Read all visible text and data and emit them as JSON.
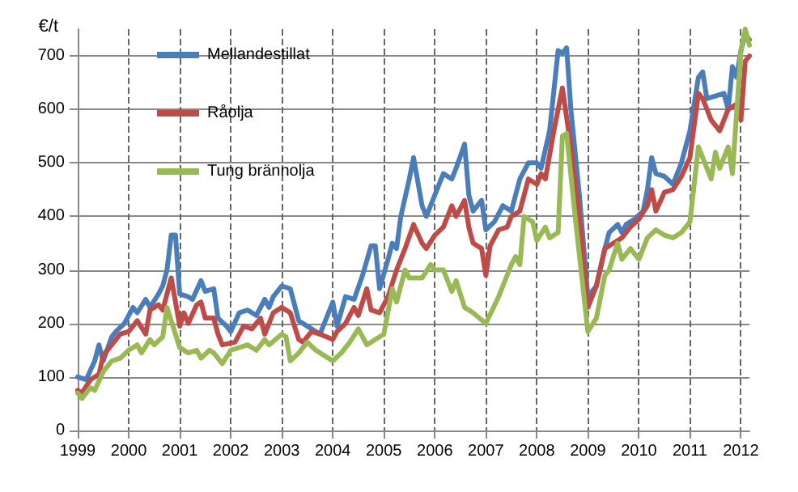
{
  "chart_data": {
    "type": "line",
    "ylabel": "€/t",
    "ylim": [
      0,
      750
    ],
    "yticks": [
      0,
      100,
      200,
      300,
      400,
      500,
      600,
      700
    ],
    "xlim": [
      "1999-01",
      "2012-03"
    ],
    "xticks": [
      "1999",
      "2000",
      "2001",
      "2002",
      "2003",
      "2004",
      "2005",
      "2006",
      "2007",
      "2008",
      "2009",
      "2010",
      "2011",
      "2012"
    ],
    "grid": true,
    "legend": "top left",
    "marker": "none",
    "line_style": "solid",
    "series": [
      {
        "name": "Mellandestillat",
        "color": "#4a7ebb",
        "x": [
          "1999-01",
          "1999-03",
          "1999-05",
          "1999-06",
          "1999-07",
          "1999-09",
          "1999-10",
          "1999-12",
          "2000-02",
          "2000-03",
          "2000-05",
          "2000-06",
          "2000-08",
          "2000-09",
          "2000-10",
          "2000-11",
          "2000-12",
          "2001-01",
          "2001-03",
          "2001-04",
          "2001-06",
          "2001-07",
          "2001-09",
          "2001-10",
          "2001-12",
          "2002-01",
          "2002-03",
          "2002-05",
          "2002-07",
          "2002-09",
          "2002-10",
          "2002-11",
          "2003-01",
          "2003-03",
          "2003-05",
          "2003-08",
          "2003-10",
          "2003-11",
          "2004-01",
          "2004-02",
          "2004-04",
          "2004-06",
          "2004-08",
          "2004-10",
          "2004-11",
          "2004-12",
          "2005-02",
          "2005-03",
          "2005-04",
          "2005-05",
          "2005-07",
          "2005-08",
          "2005-10",
          "2005-11",
          "2006-01",
          "2006-03",
          "2006-05",
          "2006-06",
          "2006-08",
          "2006-09",
          "2006-10",
          "2006-12",
          "2007-01",
          "2007-03",
          "2007-05",
          "2007-07",
          "2007-09",
          "2007-11",
          "2008-01",
          "2008-02",
          "2008-04",
          "2008-06",
          "2008-07",
          "2008-08",
          "2008-09",
          "2008-11",
          "2009-01",
          "2009-03",
          "2009-05",
          "2009-06",
          "2009-08",
          "2009-09",
          "2009-10",
          "2009-12",
          "2010-02",
          "2010-03",
          "2010-04",
          "2010-05",
          "2010-07",
          "2010-09",
          "2010-11",
          "2011-01",
          "2011-03",
          "2011-04",
          "2011-05",
          "2011-07",
          "2011-09",
          "2011-10",
          "2011-11",
          "2011-12",
          "2012-01",
          "2012-02",
          "2012-03"
        ],
        "values": [
          100,
          95,
          130,
          160,
          130,
          175,
          185,
          200,
          230,
          220,
          245,
          230,
          255,
          270,
          300,
          365,
          365,
          255,
          250,
          245,
          280,
          260,
          265,
          210,
          195,
          185,
          220,
          225,
          215,
          245,
          230,
          250,
          270,
          265,
          205,
          190,
          180,
          200,
          240,
          195,
          250,
          245,
          290,
          345,
          345,
          265,
          320,
          350,
          340,
          400,
          470,
          510,
          420,
          400,
          440,
          480,
          470,
          490,
          535,
          440,
          410,
          430,
          375,
          390,
          420,
          410,
          470,
          500,
          500,
          490,
          560,
          710,
          705,
          715,
          600,
          440,
          250,
          270,
          340,
          370,
          385,
          370,
          385,
          395,
          410,
          450,
          510,
          480,
          475,
          460,
          500,
          560,
          660,
          670,
          620,
          625,
          630,
          600,
          680,
          660,
          710,
          740,
          730
        ]
      },
      {
        "name": "Råolja",
        "color": "#be4b48",
        "x": [
          "1999-01",
          "1999-02",
          "1999-04",
          "1999-06",
          "1999-07",
          "1999-09",
          "1999-11",
          "2000-01",
          "2000-03",
          "2000-05",
          "2000-06",
          "2000-08",
          "2000-09",
          "2000-10",
          "2000-11",
          "2001-01",
          "2001-02",
          "2001-03",
          "2001-05",
          "2001-06",
          "2001-07",
          "2001-09",
          "2001-10",
          "2001-11",
          "2002-02",
          "2002-04",
          "2002-06",
          "2002-08",
          "2002-09",
          "2002-11",
          "2003-01",
          "2003-03",
          "2003-05",
          "2003-06",
          "2003-08",
          "2003-10",
          "2004-01",
          "2004-02",
          "2004-04",
          "2004-06",
          "2004-07",
          "2004-09",
          "2004-10",
          "2004-12",
          "2005-02",
          "2005-04",
          "2005-06",
          "2005-08",
          "2005-10",
          "2005-11",
          "2006-01",
          "2006-03",
          "2006-05",
          "2006-06",
          "2006-08",
          "2006-09",
          "2006-10",
          "2006-12",
          "2007-01",
          "2007-02",
          "2007-04",
          "2007-06",
          "2007-07",
          "2007-09",
          "2007-11",
          "2008-01",
          "2008-02",
          "2008-03",
          "2008-05",
          "2008-07",
          "2008-09",
          "2008-11",
          "2009-01",
          "2009-03",
          "2009-05",
          "2009-07",
          "2009-09",
          "2009-11",
          "2010-01",
          "2010-03",
          "2010-04",
          "2010-05",
          "2010-07",
          "2010-09",
          "2010-11",
          "2011-01",
          "2011-03",
          "2011-04",
          "2011-06",
          "2011-08",
          "2011-10",
          "2011-12",
          "2012-01",
          "2012-02",
          "2012-03"
        ],
        "values": [
          75,
          70,
          95,
          105,
          140,
          160,
          180,
          185,
          205,
          180,
          225,
          235,
          225,
          255,
          285,
          195,
          220,
          200,
          235,
          240,
          210,
          210,
          180,
          160,
          165,
          195,
          190,
          210,
          180,
          220,
          230,
          220,
          170,
          165,
          185,
          180,
          170,
          185,
          200,
          230,
          215,
          265,
          225,
          220,
          250,
          300,
          340,
          385,
          350,
          340,
          365,
          380,
          420,
          400,
          430,
          380,
          350,
          340,
          290,
          345,
          375,
          380,
          400,
          410,
          470,
          460,
          480,
          470,
          560,
          640,
          530,
          400,
          230,
          270,
          340,
          350,
          360,
          380,
          395,
          420,
          450,
          410,
          445,
          450,
          475,
          510,
          630,
          620,
          580,
          560,
          600,
          610,
          580,
          690,
          700
        ]
      },
      {
        "name": "Tung brännolja",
        "color": "#98b954",
        "x": [
          "1999-01",
          "1999-02",
          "1999-04",
          "1999-05",
          "1999-07",
          "1999-09",
          "1999-11",
          "2000-01",
          "2000-03",
          "2000-04",
          "2000-06",
          "2000-07",
          "2000-09",
          "2000-10",
          "2000-11",
          "2001-01",
          "2001-03",
          "2001-05",
          "2001-06",
          "2001-08",
          "2001-09",
          "2001-11",
          "2002-01",
          "2002-03",
          "2002-05",
          "2002-07",
          "2002-09",
          "2002-10",
          "2003-01",
          "2003-02",
          "2003-03",
          "2003-05",
          "2003-07",
          "2003-09",
          "2003-11",
          "2004-01",
          "2004-03",
          "2004-05",
          "2004-07",
          "2004-09",
          "2004-11",
          "2005-01",
          "2005-03",
          "2005-04",
          "2005-06",
          "2005-07",
          "2005-10",
          "2005-12",
          "2006-01",
          "2006-03",
          "2006-05",
          "2006-06",
          "2006-08",
          "2006-10",
          "2007-01",
          "2007-04",
          "2007-07",
          "2007-08",
          "2007-09",
          "2007-10",
          "2007-12",
          "2008-01",
          "2008-03",
          "2008-04",
          "2008-06",
          "2008-07",
          "2008-08",
          "2008-10",
          "2009-01",
          "2009-03",
          "2009-05",
          "2009-06",
          "2009-08",
          "2009-09",
          "2009-11",
          "2009-12",
          "2010-01",
          "2010-03",
          "2010-05",
          "2010-07",
          "2010-09",
          "2010-11",
          "2011-01",
          "2011-03",
          "2011-05",
          "2011-06",
          "2011-07",
          "2011-08",
          "2011-10",
          "2011-11",
          "2012-01",
          "2012-02",
          "2012-03"
        ],
        "values": [
          70,
          60,
          80,
          75,
          110,
          130,
          135,
          150,
          160,
          145,
          170,
          160,
          175,
          230,
          205,
          155,
          145,
          150,
          135,
          150,
          145,
          125,
          150,
          155,
          160,
          150,
          170,
          160,
          180,
          175,
          130,
          145,
          165,
          150,
          140,
          130,
          145,
          165,
          190,
          160,
          170,
          180,
          265,
          240,
          300,
          285,
          285,
          310,
          300,
          300,
          260,
          280,
          230,
          220,
          200,
          250,
          310,
          325,
          310,
          400,
          390,
          355,
          380,
          360,
          370,
          550,
          555,
          400,
          185,
          210,
          290,
          300,
          350,
          320,
          340,
          330,
          320,
          360,
          375,
          365,
          360,
          370,
          390,
          530,
          490,
          470,
          520,
          490,
          530,
          480,
          710,
          750,
          720
        ]
      }
    ]
  }
}
